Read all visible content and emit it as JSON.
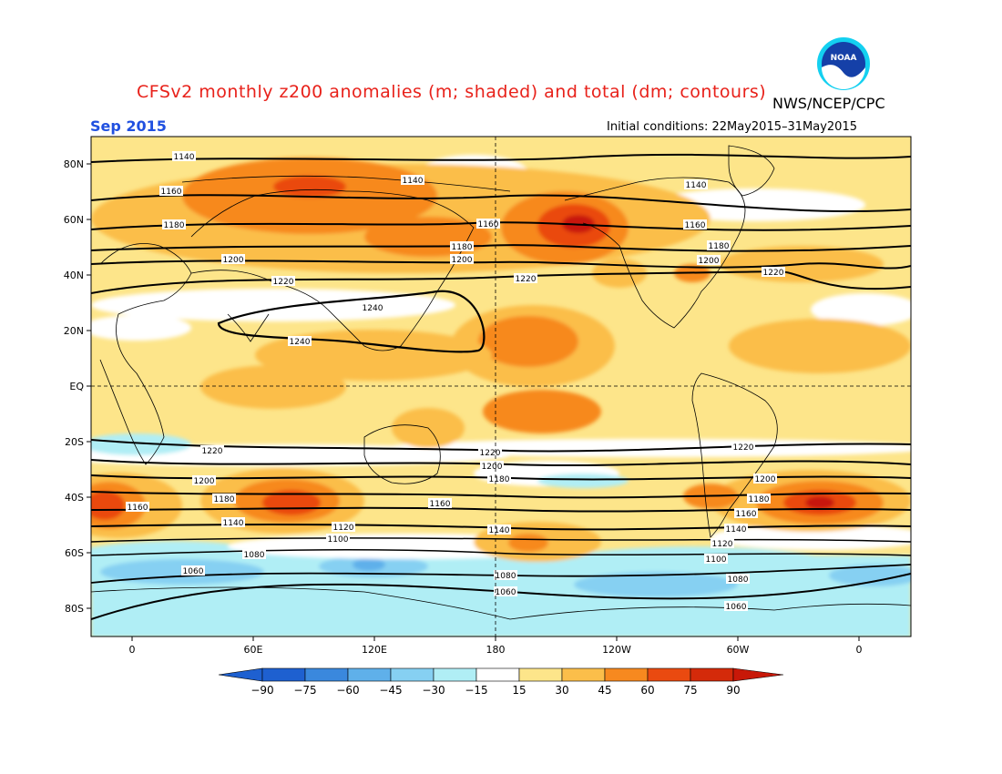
{
  "title": "CFSv2 monthly z200 anomalies (m; shaded) and total (dm; contours)",
  "agency": "NWS/NCEP/CPC",
  "month": "Sep 2015",
  "initial_conditions": "Initial conditions: 22May2015–31May2015",
  "logo_text": "NOAA",
  "colors": {
    "warm": [
      "#fde58a",
      "#fbbe4a",
      "#f7891f",
      "#ea4a10",
      "#c81808"
    ],
    "cool": [
      "#b0eef5",
      "#86d0f2",
      "#5fb0ea",
      "#3a88dd",
      "#1e60d0"
    ],
    "neutral": "#ffffff",
    "title": "#e8211a",
    "month": "#2050e0"
  },
  "lat_labels": [
    "80N",
    "60N",
    "40N",
    "20N",
    "EQ",
    "20S",
    "40S",
    "60S",
    "80S"
  ],
  "lon_labels": [
    "0",
    "60E",
    "120E",
    "180",
    "120W",
    "60W",
    "0"
  ],
  "colorbar": {
    "labels": [
      "−90",
      "−75",
      "−60",
      "−45",
      "−30",
      "−15",
      "15",
      "30",
      "45",
      "60",
      "75",
      "90"
    ]
  },
  "contour_labels": {
    "c1140a": "1140",
    "c1140b": "1140",
    "c1140c": "1140",
    "c1160a": "1160",
    "c1160b": "1160",
    "c1160c": "1160",
    "c1180a": "1180",
    "c1180b": "1180",
    "c1180c": "1180",
    "c1200a": "1200",
    "c1200b": "1200",
    "c1200c": "1200",
    "c1220a": "1220",
    "c1220b": "1220",
    "c1220c": "1220",
    "c1240a": "1240",
    "c1240b": "1240",
    "s1220a": "1220",
    "s1220b": "1220",
    "s1220c": "1220",
    "s1200a": "1200",
    "s1200b": "1200",
    "s1200c": "1200",
    "s1180a": "1180",
    "s1180b": "1180",
    "s1180c": "1180",
    "s1160a": "1160",
    "s1160b": "1160",
    "s1160c": "1160",
    "s1140a": "1140",
    "s1140b": "1140",
    "s1140c": "1140",
    "s1120a": "1120",
    "s1120b": "1120",
    "s1100a": "1100",
    "s1100b": "1100",
    "s1080a": "1080",
    "s1080b": "1080",
    "s1080c": "1080",
    "s1060a": "1060",
    "s1060b": "1060",
    "s1060c": "1060"
  }
}
